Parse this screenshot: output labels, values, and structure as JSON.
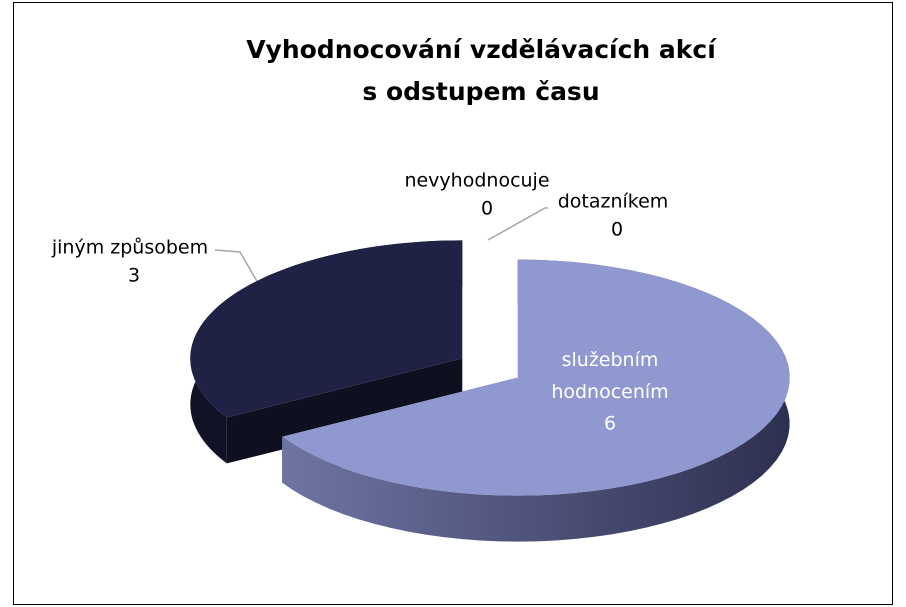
{
  "chart_data": {
    "type": "pie3d",
    "title": [
      "Vyhodnocování vzdělávacích akcí",
      "s odstupem času"
    ],
    "categories": [
      "služebním hodnocením",
      "jiným způsobem",
      "nevyhodnocuje",
      "dotazníkem"
    ],
    "values": [
      6,
      3,
      0,
      0
    ],
    "colors": [
      "#8f99cf",
      "#1f2145",
      "#4a4f8a",
      "#6a70a8"
    ]
  }
}
